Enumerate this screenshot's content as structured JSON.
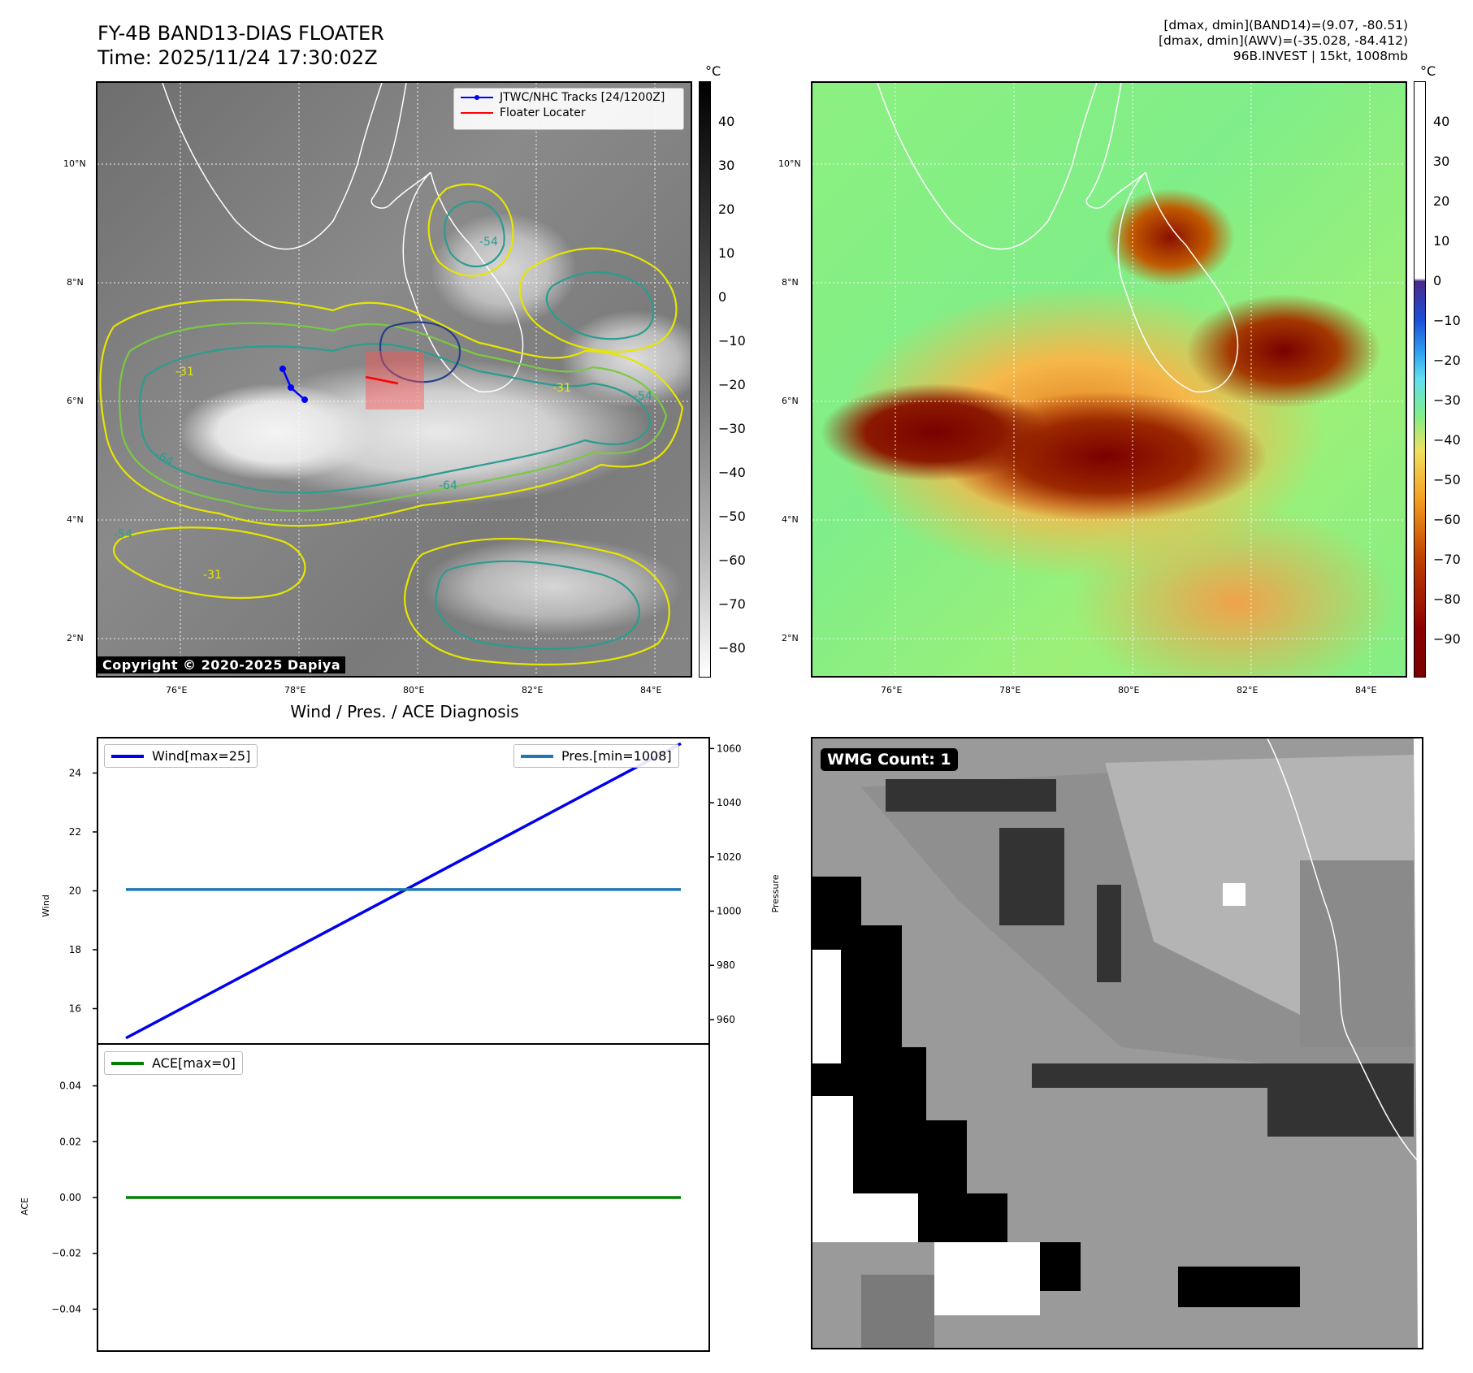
{
  "header": {
    "title_line1": "FY-4B BAND13-DIAS FLOATER",
    "title_line2": "Time: 2025/11/24 17:30:02Z",
    "diag_line1": "[dmax, dmin](BAND14)=(9.07, -80.51)",
    "diag_line2": "[dmax, dmin](AWV)=(-35.028, -84.412)",
    "diag_line3": "96B.INVEST | 15kt, 1008mb"
  },
  "map_axes": {
    "lat_labels": [
      "10°N",
      "8°N",
      "6°N",
      "4°N",
      "2°N"
    ],
    "lon_labels": [
      "76°E",
      "78°E",
      "80°E",
      "82°E",
      "84°E"
    ]
  },
  "left_map": {
    "legend_tracks": "JTWC/NHC Tracks [24/1200Z]",
    "legend_locater": "Floater Locater",
    "copyright": "Copyright © 2020-2025 Dapiya",
    "contour_labels": [
      "-31",
      "-54",
      "-64"
    ],
    "colorbar": {
      "unit": "°C",
      "ticks": [
        "40",
        "30",
        "20",
        "10",
        "0",
        "−10",
        "−20",
        "−30",
        "−40",
        "−50",
        "−60",
        "−70",
        "−80"
      ]
    }
  },
  "right_map": {
    "colorbar": {
      "unit": "°C",
      "ticks": [
        "40",
        "30",
        "20",
        "10",
        "0",
        "−10",
        "−20",
        "−30",
        "−40",
        "−50",
        "−60",
        "−70",
        "−80",
        "−90"
      ]
    }
  },
  "diagnosis": {
    "subtitle": "Wind / Pres. / ACE Diagnosis",
    "wind_legend": "Wind[max=25]",
    "pres_legend": "Pres.[min=1008]",
    "ace_legend": "ACE[max=0]",
    "wind_ylabel": "Wind",
    "pres_ylabel": "Pressure",
    "ace_ylabel": "ACE",
    "wind_ticks": [
      "24",
      "22",
      "20",
      "18",
      "16"
    ],
    "pres_ticks": [
      "1060",
      "1040",
      "1020",
      "1000",
      "980",
      "960"
    ],
    "ace_ticks": [
      "0.04",
      "0.02",
      "0.00",
      "−0.02",
      "−0.04"
    ]
  },
  "wmg": {
    "label": "WMG Count: 1"
  },
  "colors": {
    "wind": "#0000ee",
    "pressure": "#1f77b4",
    "ace": "#008000",
    "track": "#0000ff",
    "locater": "#ff0000"
  },
  "chart_data": [
    {
      "type": "line",
      "title": "Wind / Pres. / ACE Diagnosis",
      "ylabel": "Wind",
      "ylim": [
        14.8,
        25.2
      ],
      "series": [
        {
          "name": "Wind[max=25]",
          "values": [
            15,
            25
          ]
        }
      ]
    },
    {
      "type": "line",
      "ylabel": "Pressure",
      "ylim": [
        951,
        1064
      ],
      "series": [
        {
          "name": "Pres.[min=1008]",
          "values": [
            1008,
            1008
          ]
        }
      ]
    },
    {
      "type": "line",
      "ylabel": "ACE",
      "ylim": [
        -0.055,
        0.055
      ],
      "series": [
        {
          "name": "ACE[max=0]",
          "values": [
            0,
            0
          ]
        }
      ]
    }
  ]
}
